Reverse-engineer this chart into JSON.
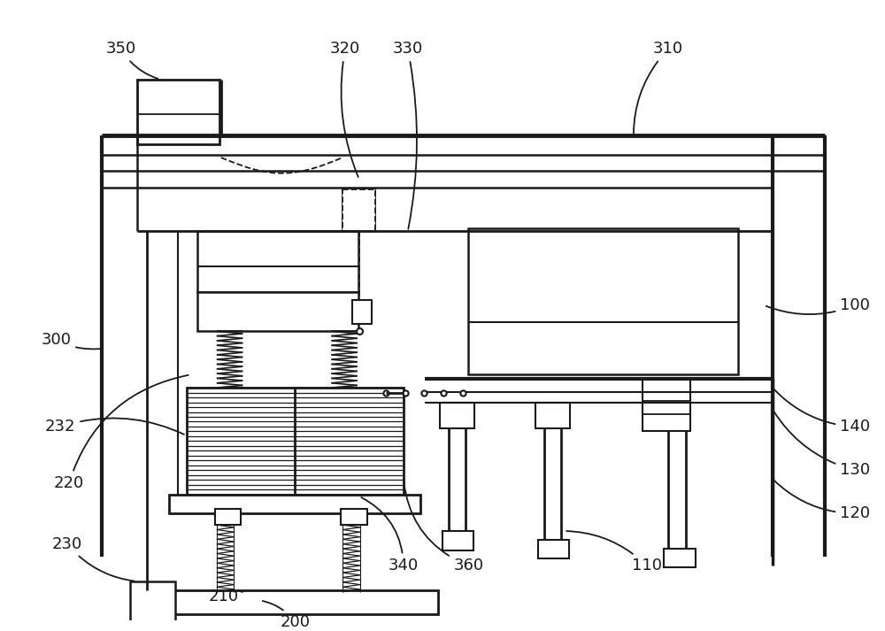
{
  "bg": "#ffffff",
  "c": "#1a1a1a",
  "figsize": [
    10.0,
    7.13
  ],
  "dpi": 100
}
